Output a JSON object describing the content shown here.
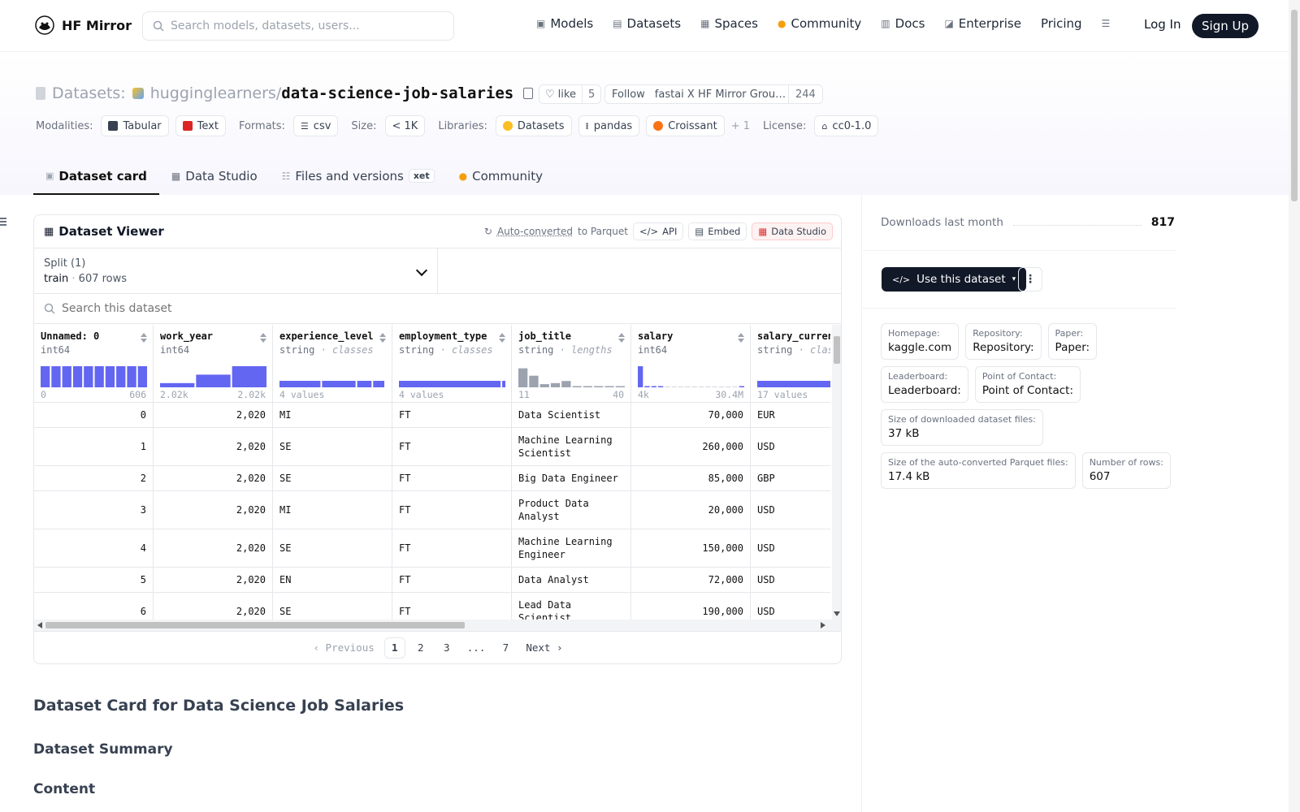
{
  "nav": {
    "brand": "HF Mirror",
    "search_placeholder": "Search models, datasets, users...",
    "links": [
      {
        "label": "Models",
        "icon": "cube-icon"
      },
      {
        "label": "Datasets",
        "icon": "database-icon"
      },
      {
        "label": "Spaces",
        "icon": "grid-icon"
      },
      {
        "label": "Community",
        "icon": "emoji-icon"
      },
      {
        "label": "Docs",
        "icon": "book-icon"
      },
      {
        "label": "Enterprise",
        "icon": "enterprise-icon"
      },
      {
        "label": "Pricing",
        "icon": ""
      }
    ],
    "login": "Log In",
    "signup": "Sign Up"
  },
  "repo": {
    "type_label": "Datasets:",
    "owner": "hugginglearners",
    "separator": "/",
    "name": "data-science-job-salaries",
    "like_label": "like",
    "like_count": "5",
    "follow_label": "Follow",
    "follow_org": "fastai X HF Mirror Grou…",
    "follow_count": "244"
  },
  "tags": {
    "modalities_label": "Modalities:",
    "modalities": [
      "Tabular",
      "Text"
    ],
    "formats_label": "Formats:",
    "format": "csv",
    "size_label": "Size:",
    "size": "< 1K",
    "libraries_label": "Libraries:",
    "libraries": [
      "Datasets",
      "pandas",
      "Croissant"
    ],
    "libraries_more": "+ 1",
    "license_label": "License:",
    "license": "cc0-1.0"
  },
  "tabs": [
    {
      "label": "Dataset card",
      "active": true
    },
    {
      "label": "Data Studio",
      "active": false
    },
    {
      "label": "Files and versions",
      "active": false,
      "badge": "xet"
    },
    {
      "label": "Community",
      "active": false
    }
  ],
  "viewer": {
    "title": "Dataset Viewer",
    "auto_converted": "Auto-converted",
    "to_parquet": "to Parquet",
    "api": "API",
    "embed": "Embed",
    "data_studio": "Data Studio",
    "split_label": "Split (1)",
    "split_name": "train",
    "split_rows": "607 rows",
    "search_placeholder": "Search this dataset",
    "columns": [
      {
        "name": "Unnamed: 0",
        "type": "int64",
        "sub": "",
        "min": "0",
        "max": "606",
        "hist": [
          1,
          1,
          1,
          1,
          1,
          1,
          1,
          1,
          1,
          1
        ],
        "hist_color": "#6366f1"
      },
      {
        "name": "work_year",
        "type": "int64",
        "sub": "",
        "min": "2.02k",
        "max": "2.02k",
        "hist": [
          0.2,
          0.6,
          1
        ],
        "hist_color": "#6366f1"
      },
      {
        "name": "experience_level",
        "type": "string",
        "sub": "classes",
        "min": "4 values",
        "max": "",
        "classes": [
          0.4,
          0.33,
          0.15,
          0.12
        ],
        "hist_color": "#6366f1"
      },
      {
        "name": "employment_type",
        "type": "string",
        "sub": "classes",
        "min": "4 values",
        "max": "",
        "classes": [
          0.97,
          0.01,
          0.01,
          0.01
        ],
        "hist_color": "#6366f1"
      },
      {
        "name": "job_title",
        "type": "string",
        "sub": "lengths",
        "min": "11",
        "max": "40",
        "hist": [
          0.9,
          0.55,
          0.15,
          0.2,
          0.3,
          0.05,
          0.05,
          0.05,
          0.02,
          0.03
        ],
        "hist_color": "#9ca3af"
      },
      {
        "name": "salary",
        "type": "int64",
        "sub": "",
        "min": "4k",
        "max": "30.4M",
        "hist": [
          1,
          0.05,
          0.05,
          0.05,
          0,
          0,
          0,
          0,
          0,
          0,
          0,
          0,
          0,
          0,
          0,
          0.05
        ],
        "hist_color": "#6366f1"
      },
      {
        "name": "salary_currency",
        "type": "string",
        "sub": "classes",
        "min": "17 values",
        "max": "",
        "classes": [
          0.9,
          0.1
        ],
        "hist_color": "#6366f1"
      }
    ],
    "rows": [
      [
        "0",
        "2,020",
        "MI",
        "FT",
        "Data Scientist",
        "70,000",
        "EUR"
      ],
      [
        "1",
        "2,020",
        "SE",
        "FT",
        "Machine Learning Scientist",
        "260,000",
        "USD"
      ],
      [
        "2",
        "2,020",
        "SE",
        "FT",
        "Big Data Engineer",
        "85,000",
        "GBP"
      ],
      [
        "3",
        "2,020",
        "MI",
        "FT",
        "Product Data Analyst",
        "20,000",
        "USD"
      ],
      [
        "4",
        "2,020",
        "SE",
        "FT",
        "Machine Learning Engineer",
        "150,000",
        "USD"
      ],
      [
        "5",
        "2,020",
        "EN",
        "FT",
        "Data Analyst",
        "72,000",
        "USD"
      ],
      [
        "6",
        "2,020",
        "SE",
        "FT",
        "Lead Data Scientist",
        "190,000",
        "USD"
      ]
    ],
    "pager": {
      "prev": "Previous",
      "pages": [
        "1",
        "2",
        "3",
        "...",
        "7"
      ],
      "next": "Next"
    }
  },
  "card": {
    "title": "Dataset Card for Data Science Job Salaries",
    "summary": "Dataset Summary",
    "content": "Content"
  },
  "sidebar": {
    "downloads_label": "Downloads last month",
    "downloads_value": "817",
    "use_button": "Use this dataset",
    "meta": [
      {
        "label": "Homepage:",
        "value": "kaggle.com"
      },
      {
        "label": "Repository:",
        "value": "Repository:"
      },
      {
        "label": "Paper:",
        "value": "Paper:"
      },
      {
        "label": "Leaderboard:",
        "value": "Leaderboard:"
      },
      {
        "label": "Point of Contact:",
        "value": "Point of Contact:"
      },
      {
        "label": "Size of downloaded dataset files:",
        "value": "37 kB"
      },
      {
        "label": "Size of the auto-converted Parquet files:",
        "value": "17.4 kB"
      },
      {
        "label": "Number of rows:",
        "value": "607"
      }
    ]
  }
}
